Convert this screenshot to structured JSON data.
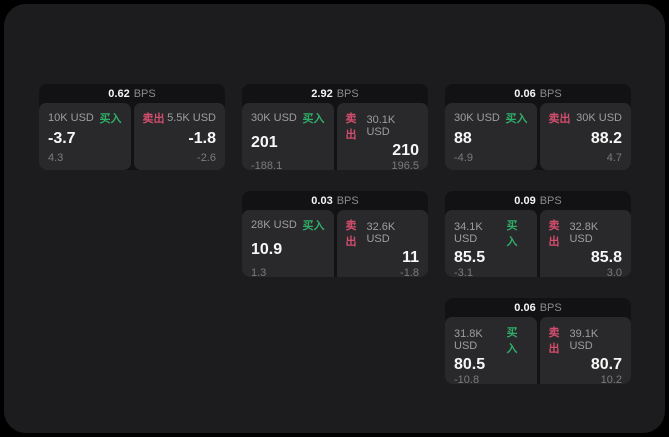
{
  "labels": {
    "bps_unit": "BPS",
    "buy": "买入",
    "sell": "卖出"
  },
  "colors": {
    "background": "#000000",
    "panel": "#1c1c1e",
    "card": "#121214",
    "subcard": "#29292b",
    "buy_green": "#2fae68",
    "sell_red": "#d34d6d"
  },
  "cards": [
    {
      "bps": "0.62",
      "buy": {
        "amount": "10K USD",
        "value": "-3.7",
        "delta": "4.3"
      },
      "sell": {
        "amount": "5.5K USD",
        "value": "-1.8",
        "delta": "-2.6"
      }
    },
    {
      "bps": "2.92",
      "buy": {
        "amount": "30K USD",
        "value": "201",
        "delta": "-188.1"
      },
      "sell": {
        "amount": "30.1K USD",
        "value": "210",
        "delta": "196.5"
      }
    },
    {
      "bps": "0.06",
      "buy": {
        "amount": "30K USD",
        "value": "88",
        "delta": "-4.9"
      },
      "sell": {
        "amount": "30K USD",
        "value": "88.2",
        "delta": "4.7"
      }
    },
    {
      "bps": "0.03",
      "buy": {
        "amount": "28K USD",
        "value": "10.9",
        "delta": "1.3"
      },
      "sell": {
        "amount": "32.6K USD",
        "value": "11",
        "delta": "-1.8"
      }
    },
    {
      "bps": "0.09",
      "buy": {
        "amount": "34.1K USD",
        "value": "85.5",
        "delta": "-3.1"
      },
      "sell": {
        "amount": "32.8K USD",
        "value": "85.8",
        "delta": "3.0"
      }
    },
    {
      "bps": "0.06",
      "buy": {
        "amount": "31.8K USD",
        "value": "80.5",
        "delta": "-10.8"
      },
      "sell": {
        "amount": "39.1K USD",
        "value": "80.7",
        "delta": "10.2"
      }
    }
  ]
}
